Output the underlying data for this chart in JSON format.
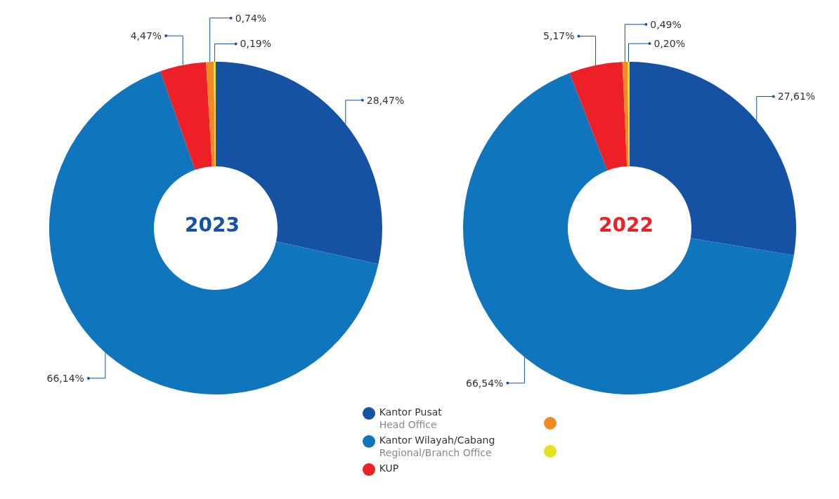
{
  "chart_data": [
    {
      "type": "donut",
      "title": "2023",
      "categories": [
        "Kantor Pusat\nHead Office",
        "Kantor Wilayah/Cabang\nRegional/Branch Office",
        "KUP",
        null,
        null
      ],
      "values": [
        28.47,
        66.14,
        4.47,
        0.74,
        0.19
      ],
      "value_labels": [
        "28,47%",
        "66,14%",
        "4,47%",
        "0,74%",
        "0,19%"
      ],
      "colors": [
        "#1552a3",
        "#0f75bd",
        "#ee2027",
        "#f08a24",
        "#e5e21e"
      ],
      "legend": "bottom"
    },
    {
      "type": "donut",
      "title": "2022",
      "values": [
        27.61,
        66.54,
        5.17,
        0.49,
        0.2
      ],
      "value_labels": [
        "27,61%",
        "66,54%",
        "5,17%",
        "0,49%",
        "0,20%"
      ],
      "colors": [
        "#1552a3",
        "#0f75bd",
        "#ee2027",
        "#f08a24",
        "#e5e21e"
      ]
    }
  ]
}
